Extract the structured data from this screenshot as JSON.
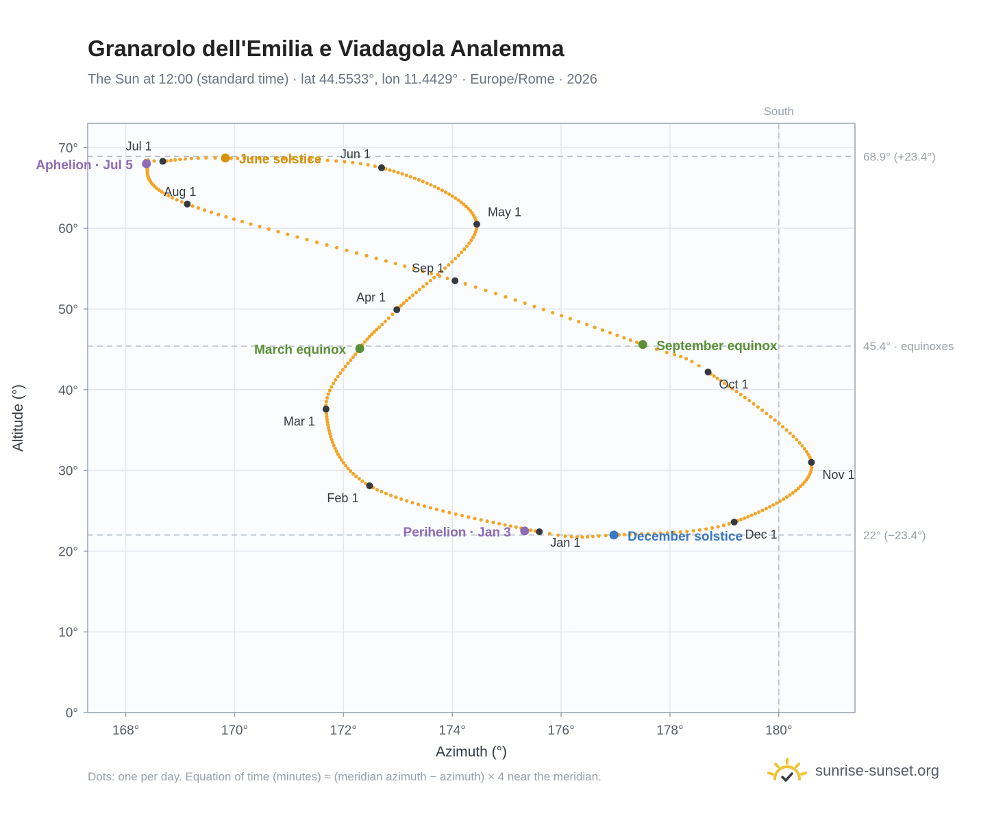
{
  "title": "Granarolo dell'Emilia e Viadagola Analemma",
  "subtitle": "The Sun at 12:00 (standard time) · lat 44.5533°, lon 11.4429° · Europe/Rome · 2026",
  "footnote": "Dots: one per day. Equation of time (minutes) ≈ (meridian azimuth − azimuth) × 4 near the meridian.",
  "brand": {
    "name": "sunrise-sunset.org",
    "icon": "sun-logo-icon"
  },
  "colors": {
    "curve": "#f2a527",
    "month": "#343a40",
    "solstice_june": "#d4920f",
    "equinox": "#5b8f35",
    "solstice_december": "#3a78c4",
    "apsis": "#8f6bb5",
    "grid": "#e3e8ee",
    "plot_bg": "#fafcfe",
    "reference": "#b6c0c9"
  },
  "chart_data": {
    "type": "scatter",
    "xlabel": "Azimuth (°)",
    "ylabel": "Altitude (°)",
    "xlim": [
      167.3,
      181.4
    ],
    "ylim": [
      0,
      73
    ],
    "x_ticks": [
      168,
      170,
      172,
      174,
      176,
      178,
      180
    ],
    "x_tick_labels": [
      "168°",
      "170°",
      "172°",
      "174°",
      "176°",
      "178°",
      "180°"
    ],
    "y_ticks": [
      0,
      10,
      20,
      30,
      40,
      50,
      60,
      70
    ],
    "y_tick_labels": [
      "0°",
      "10°",
      "20°",
      "30°",
      "40°",
      "50°",
      "60°",
      "70°"
    ],
    "grid": true,
    "vertical_reference": {
      "x": 180,
      "label": "South"
    },
    "horizontal_references": [
      {
        "y": 68.9,
        "label": "68.9° (+23.4°)"
      },
      {
        "y": 45.4,
        "label": "45.4° · equinoxes"
      },
      {
        "y": 22,
        "label": "22° (−23.4°)"
      }
    ],
    "path_anchors": [
      {
        "doy": 1,
        "az": 175.6,
        "alt": 22.4
      },
      {
        "doy": 32,
        "az": 172.48,
        "alt": 28.1
      },
      {
        "doy": 60,
        "az": 171.68,
        "alt": 37.6
      },
      {
        "doy": 78,
        "az": 172.3,
        "alt": 45.1
      },
      {
        "doy": 91,
        "az": 172.98,
        "alt": 49.9
      },
      {
        "doy": 121,
        "az": 174.45,
        "alt": 60.5
      },
      {
        "doy": 152,
        "az": 172.7,
        "alt": 67.5
      },
      {
        "doy": 172,
        "az": 169.83,
        "alt": 68.7
      },
      {
        "doy": 182,
        "az": 168.68,
        "alt": 68.3
      },
      {
        "doy": 186,
        "az": 168.38,
        "alt": 68.0
      },
      {
        "doy": 213,
        "az": 169.13,
        "alt": 63.0
      },
      {
        "doy": 244,
        "az": 174.05,
        "alt": 53.5
      },
      {
        "doy": 266,
        "az": 177.5,
        "alt": 45.6
      },
      {
        "doy": 274,
        "az": 178.7,
        "alt": 42.2
      },
      {
        "doy": 305,
        "az": 180.6,
        "alt": 31.0
      },
      {
        "doy": 335,
        "az": 179.18,
        "alt": 23.6
      },
      {
        "doy": 355,
        "az": 176.97,
        "alt": 22.0
      },
      {
        "doy": 366,
        "az": 175.6,
        "alt": 22.4
      }
    ],
    "month_markers": [
      {
        "label": "Jan 1",
        "az": 175.6,
        "alt": 22.4
      },
      {
        "label": "Feb 1",
        "az": 172.48,
        "alt": 28.1
      },
      {
        "label": "Mar 1",
        "az": 171.68,
        "alt": 37.6
      },
      {
        "label": "Apr 1",
        "az": 172.98,
        "alt": 49.9
      },
      {
        "label": "May 1",
        "az": 174.45,
        "alt": 60.5
      },
      {
        "label": "Jun 1",
        "az": 172.7,
        "alt": 67.5
      },
      {
        "label": "Jul 1",
        "az": 168.68,
        "alt": 68.3
      },
      {
        "label": "Aug 1",
        "az": 169.13,
        "alt": 63.0
      },
      {
        "label": "Sep 1",
        "az": 174.05,
        "alt": 53.5
      },
      {
        "label": "Oct 1",
        "az": 178.7,
        "alt": 42.2
      },
      {
        "label": "Nov 1",
        "az": 180.6,
        "alt": 31.0
      },
      {
        "label": "Dec 1",
        "az": 179.18,
        "alt": 23.6
      }
    ],
    "events": [
      {
        "label": "June solstice",
        "az": 169.83,
        "alt": 68.7,
        "kind": "solstice_june"
      },
      {
        "label": "March equinox",
        "az": 172.3,
        "alt": 45.1,
        "kind": "equinox"
      },
      {
        "label": "September equinox",
        "az": 177.5,
        "alt": 45.6,
        "kind": "equinox"
      },
      {
        "label": "December solstice",
        "az": 176.97,
        "alt": 22.0,
        "kind": "solstice_december"
      },
      {
        "label": "Aphelion · Jul 5",
        "az": 168.38,
        "alt": 68.0,
        "kind": "apsis"
      },
      {
        "label": "Perihelion · Jan 3",
        "az": 175.33,
        "alt": 22.5,
        "kind": "apsis"
      }
    ]
  }
}
